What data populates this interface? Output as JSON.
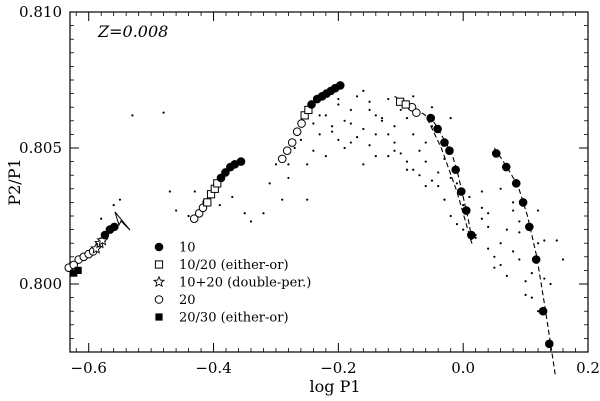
{
  "chart_data": {
    "type": "scatter",
    "title": "",
    "xlabel": "log P1",
    "ylabel": "P2/P1",
    "xlim": [
      -0.63,
      0.2
    ],
    "ylim": [
      0.7975,
      0.81
    ],
    "xticks": [
      -0.6,
      -0.4,
      -0.2,
      0.0,
      0.2
    ],
    "xtick_labels": [
      "−0.6",
      "−0.4",
      "−0.2",
      "0.0",
      "0.2"
    ],
    "yticks": [
      0.8,
      0.805,
      0.81
    ],
    "ytick_labels": [
      "0.800",
      "0.805",
      "0.810"
    ],
    "grid": false,
    "legend_position": "lower-left",
    "annotation": "Z=0.008",
    "series": [
      {
        "name": "10",
        "marker": "filled-circle",
        "x": [
          -0.574,
          -0.566,
          -0.559,
          -0.388,
          -0.381,
          -0.373,
          -0.366,
          -0.356,
          -0.243,
          -0.234,
          -0.226,
          -0.219,
          -0.212,
          -0.205,
          -0.197,
          -0.052,
          -0.041,
          -0.03,
          -0.022,
          -0.012,
          -0.003,
          0.005,
          0.013,
          0.053,
          0.069,
          0.085,
          0.096,
          0.106,
          0.117,
          0.128,
          0.138
        ],
        "y": [
          0.8018,
          0.802,
          0.8021,
          0.8039,
          0.8041,
          0.8043,
          0.8044,
          0.8045,
          0.8066,
          0.8068,
          0.8069,
          0.807,
          0.8071,
          0.8072,
          0.8073,
          0.8061,
          0.8057,
          0.8052,
          0.8049,
          0.8042,
          0.8034,
          0.8027,
          0.8018,
          0.8048,
          0.8043,
          0.8037,
          0.803,
          0.8021,
          0.8009,
          0.799,
          0.7978
        ]
      },
      {
        "name": "10/20 (either-or)",
        "marker": "open-square",
        "x": [
          -0.254,
          -0.248,
          -0.101,
          -0.092,
          -0.41,
          -0.404,
          -0.398,
          -0.394
        ],
        "y": [
          0.8062,
          0.8064,
          0.8067,
          0.8066,
          0.803,
          0.8033,
          0.8035,
          0.8037
        ],
        "dashed_fit": {
          "x": [
            -0.11,
            -0.06,
            -0.035,
            -0.01,
            0.015
          ],
          "y": [
            0.8069,
            0.8062,
            0.805,
            0.8034,
            0.8014
          ]
        }
      },
      {
        "name": "10+20 (double-per.)",
        "marker": "open-star",
        "x": [
          -0.588,
          -0.582,
          -0.578
        ],
        "y": [
          0.8013,
          0.8015,
          0.8016
        ]
      },
      {
        "name": "20",
        "marker": "open-circle",
        "x": [
          -0.431,
          -0.423,
          -0.417,
          -0.411,
          -0.29,
          -0.282,
          -0.274,
          -0.266,
          -0.259,
          -0.082,
          -0.075,
          -0.648,
          -0.64,
          -0.632,
          -0.624,
          -0.616,
          -0.608,
          -0.6,
          -0.593
        ],
        "y": [
          0.8024,
          0.8026,
          0.8028,
          0.803,
          0.8046,
          0.8049,
          0.8052,
          0.8056,
          0.8059,
          0.8065,
          0.8063,
          0.8003,
          0.8005,
          0.8006,
          0.8007,
          0.8009,
          0.801,
          0.8011,
          0.8012
        ]
      },
      {
        "name": "20/30 (either-or)",
        "marker": "filled-square",
        "x": [
          -0.624,
          -0.617
        ],
        "y": [
          0.8004,
          0.8005
        ]
      }
    ],
    "fit_lines": [
      {
        "x": [
          -0.054,
          -0.04,
          -0.028,
          -0.018,
          -0.008,
          0.0,
          0.008,
          0.015
        ],
        "y": [
          0.8062,
          0.8057,
          0.8052,
          0.8048,
          0.804,
          0.8032,
          0.8024,
          0.8015
        ]
      },
      {
        "x": [
          0.05,
          0.07,
          0.088,
          0.103,
          0.118,
          0.13,
          0.14,
          0.148
        ],
        "y": [
          0.805,
          0.8043,
          0.8036,
          0.8025,
          0.801,
          0.7993,
          0.7978,
          0.7966
        ]
      }
    ],
    "background_points": {
      "x": [
        -0.56,
        -0.53,
        -0.48,
        -0.47,
        -0.46,
        -0.44,
        -0.37,
        -0.35,
        -0.34,
        -0.31,
        -0.3,
        -0.29,
        -0.28,
        -0.27,
        -0.26,
        -0.25,
        -0.24,
        -0.23,
        -0.22,
        -0.21,
        -0.2,
        -0.19,
        -0.18,
        -0.17,
        -0.16,
        -0.15,
        -0.14,
        -0.13,
        -0.12,
        -0.11,
        -0.1,
        -0.09,
        -0.08,
        -0.07,
        -0.06,
        -0.05,
        -0.04,
        -0.03,
        -0.02,
        -0.01,
        0.0,
        0.02,
        0.03,
        0.04,
        0.05,
        0.06,
        0.07,
        0.08,
        0.09,
        0.1,
        0.11,
        0.12,
        0.13,
        -0.26,
        -0.24,
        -0.23,
        -0.21,
        -0.2,
        -0.18,
        -0.16,
        -0.15,
        -0.14,
        -0.12,
        -0.11,
        -0.09,
        -0.08,
        -0.06,
        -0.05,
        -0.03,
        -0.02,
        0.01,
        0.03,
        0.04,
        0.06,
        0.08,
        0.09,
        0.11,
        0.12,
        -0.22,
        -0.19,
        -0.17,
        -0.13,
        -0.1,
        -0.07,
        -0.04,
        -0.01,
        0.02,
        0.05,
        0.07,
        0.1,
        0.13,
        0.16,
        -0.2,
        -0.15,
        -0.12,
        -0.08,
        -0.05,
        -0.02,
        0.04,
        0.06,
        0.09,
        0.14,
        -0.18,
        -0.16,
        -0.14,
        -0.11,
        -0.09,
        -0.06,
        -0.03,
        0.0,
        0.03,
        0.08,
        -0.43,
        -0.39,
        -0.32,
        -0.28,
        -0.25,
        -0.58,
        -0.55,
        0.12,
        0.15
      ],
      "y": [
        0.8029,
        0.8062,
        0.8063,
        0.8034,
        0.8027,
        0.8025,
        0.8032,
        0.8026,
        0.8023,
        0.8037,
        0.8044,
        0.8031,
        0.8044,
        0.805,
        0.8058,
        0.8044,
        0.8049,
        0.8055,
        0.8062,
        0.8058,
        0.8053,
        0.806,
        0.8064,
        0.8069,
        0.8071,
        0.8067,
        0.8062,
        0.806,
        0.8055,
        0.8052,
        0.8048,
        0.8045,
        0.8042,
        0.804,
        0.8045,
        0.8038,
        0.8036,
        0.8031,
        0.8025,
        0.8022,
        0.802,
        0.8017,
        0.8024,
        0.8013,
        0.801,
        0.8007,
        0.8003,
        0.8012,
        0.8019,
        0.8001,
        0.7995,
        0.799,
        0.8002,
        0.8053,
        0.8059,
        0.8062,
        0.8056,
        0.8066,
        0.8059,
        0.8057,
        0.8051,
        0.8055,
        0.8047,
        0.8058,
        0.8061,
        0.8055,
        0.8052,
        0.8058,
        0.8046,
        0.8039,
        0.8032,
        0.8028,
        0.8021,
        0.8015,
        0.8027,
        0.8009,
        0.8004,
        0.8015,
        0.8047,
        0.805,
        0.8054,
        0.8061,
        0.8064,
        0.8049,
        0.8041,
        0.8037,
        0.8018,
        0.8006,
        0.802,
        0.7996,
        0.8016,
        0.8009,
        0.8068,
        0.8064,
        0.8068,
        0.8069,
        0.8065,
        0.8061,
        0.8026,
        0.8035,
        0.8023,
        0.8,
        0.8052,
        0.8044,
        0.8047,
        0.8049,
        0.8042,
        0.8036,
        0.8031,
        0.8029,
        0.8034,
        0.803,
        0.8034,
        0.8029,
        0.8026,
        0.8039,
        0.8031,
        0.8024,
        0.8031,
        0.8027,
        0.8016
      ]
    }
  }
}
